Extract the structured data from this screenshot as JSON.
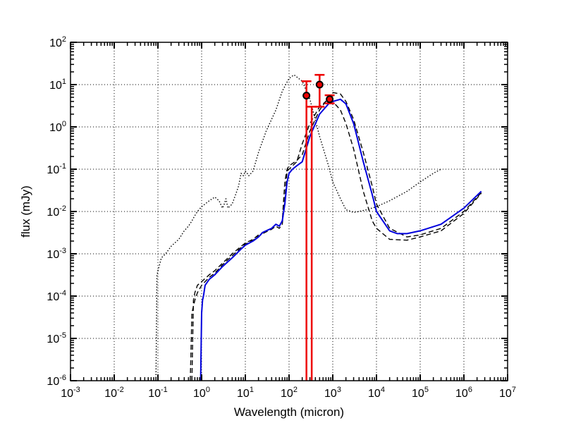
{
  "chart_data": {
    "type": "line",
    "xlabel": "Wavelength (micron)",
    "ylabel": "flux (mJy)",
    "xscale": "log",
    "yscale": "log",
    "xlim": [
      0.001,
      10000000
    ],
    "ylim": [
      1e-06,
      100
    ],
    "grid": true,
    "x_ticks": [
      {
        "base": "10",
        "exp": "-3"
      },
      {
        "base": "10",
        "exp": "-2"
      },
      {
        "base": "10",
        "exp": "-1"
      },
      {
        "base": "10",
        "exp": "0"
      },
      {
        "base": "10",
        "exp": "1"
      },
      {
        "base": "10",
        "exp": "2"
      },
      {
        "base": "10",
        "exp": "3"
      },
      {
        "base": "10",
        "exp": "4"
      },
      {
        "base": "10",
        "exp": "5"
      },
      {
        "base": "10",
        "exp": "6"
      },
      {
        "base": "10",
        "exp": "7"
      }
    ],
    "y_ticks": [
      {
        "base": "10",
        "exp": "-6"
      },
      {
        "base": "10",
        "exp": "-5"
      },
      {
        "base": "10",
        "exp": "-4"
      },
      {
        "base": "10",
        "exp": "-3"
      },
      {
        "base": "10",
        "exp": "-2"
      },
      {
        "base": "10",
        "exp": "-1"
      },
      {
        "base": "10",
        "exp": "0"
      },
      {
        "base": "10",
        "exp": "1"
      },
      {
        "base": "10",
        "exp": "2"
      }
    ],
    "series": [
      {
        "style": "dotted",
        "color": "#000000",
        "x": [
          0.09,
          0.095,
          0.1,
          0.12,
          0.15,
          0.2,
          0.3,
          0.4,
          0.5,
          0.55,
          0.6,
          0.7,
          0.8,
          1.0,
          1.5,
          2.0,
          2.5,
          3.0,
          3.3,
          3.6,
          4.0,
          5.0,
          6.0,
          7.0,
          8.0,
          9.0,
          10.0,
          11.0,
          12.0,
          15.0,
          20.0,
          30.0,
          50.0,
          70.0,
          100.0,
          130.0,
          200.0,
          300.0,
          500.0,
          800.0,
          1000.0,
          1500.0,
          2000.0,
          3000.0,
          4000.0,
          6000.0,
          10000.0,
          20000.0,
          50000.0,
          100000.0,
          200000.0,
          300000.0
        ],
        "y": [
          1e-06,
          0.0003,
          0.0004,
          0.0008,
          0.001,
          0.0015,
          0.0022,
          0.0035,
          0.0045,
          0.0052,
          0.006,
          0.008,
          0.01,
          0.013,
          0.018,
          0.022,
          0.018,
          0.012,
          0.015,
          0.02,
          0.012,
          0.015,
          0.025,
          0.04,
          0.08,
          0.07,
          0.09,
          0.08,
          0.07,
          0.09,
          0.25,
          0.8,
          2.5,
          7.0,
          14.0,
          17.0,
          12.0,
          4.5,
          0.6,
          0.12,
          0.05,
          0.02,
          0.011,
          0.0095,
          0.01,
          0.011,
          0.013,
          0.018,
          0.03,
          0.05,
          0.08,
          0.1
        ]
      },
      {
        "style": "dashed",
        "color": "#000000",
        "x": [
          0.6,
          0.65,
          0.7,
          0.8,
          1.0,
          1.5,
          2.0,
          3.0,
          5.0,
          8.0,
          10.0,
          15.0,
          20.0,
          25.0,
          30.0,
          40.0,
          50.0,
          60.0,
          70.0,
          80.0,
          90.0,
          100.0,
          150.0,
          200.0,
          300.0,
          500.0,
          800.0,
          1000.0,
          1500.0,
          2000.0,
          3000.0,
          5000.0,
          8000.0,
          10000.0,
          20000.0,
          50000.0,
          100000.0,
          300000.0,
          1000000.0,
          2500000.0
        ],
        "y": [
          1e-06,
          8e-05,
          0.00012,
          0.00018,
          0.00022,
          0.00032,
          0.0004,
          0.0006,
          0.001,
          0.0015,
          0.0018,
          0.0022,
          0.0028,
          0.0032,
          0.0035,
          0.004,
          0.005,
          0.0045,
          0.006,
          0.05,
          0.1,
          0.12,
          0.16,
          0.22,
          0.8,
          2.5,
          5.0,
          6.5,
          6.0,
          4.0,
          1.5,
          0.25,
          0.04,
          0.015,
          0.004,
          0.0025,
          0.0028,
          0.004,
          0.01,
          0.028
        ]
      },
      {
        "style": "dashed",
        "color": "#000000",
        "x": [
          0.55,
          0.6,
          0.7,
          0.8,
          1.0,
          1.5,
          2.0,
          3.0,
          5.0,
          8.0,
          10.0,
          15.0,
          20.0,
          25.0,
          30.0,
          40.0,
          50.0,
          60.0,
          70.0,
          80.0,
          90.0,
          100.0,
          150.0,
          200.0,
          300.0,
          500.0,
          800.0,
          1000.0,
          1500.0,
          2000.0,
          3000.0,
          5000.0,
          8000.0,
          10000.0,
          20000.0,
          50000.0,
          100000.0,
          300000.0,
          1000000.0,
          2500000.0
        ],
        "y": [
          1e-06,
          4e-05,
          8e-05,
          0.00012,
          0.00018,
          0.00028,
          0.00035,
          0.00055,
          0.0009,
          0.0014,
          0.0017,
          0.0021,
          0.0026,
          0.003,
          0.0033,
          0.0038,
          0.0045,
          0.004,
          0.005,
          0.02,
          0.09,
          0.1,
          0.15,
          0.4,
          1.2,
          3.0,
          4.5,
          4.0,
          2.5,
          1.2,
          0.3,
          0.03,
          0.006,
          0.004,
          0.0022,
          0.0021,
          0.0025,
          0.0035,
          0.009,
          0.027
        ]
      },
      {
        "style": "solid",
        "color": "#0000dd",
        "x": [
          0.95,
          1.0,
          1.05,
          1.1,
          1.2,
          1.5,
          2.0,
          3.0,
          5.0,
          8.0,
          10.0,
          15.0,
          20.0,
          25.0,
          30.0,
          40.0,
          50.0,
          60.0,
          70.0,
          80.0,
          90.0,
          100.0,
          120.0,
          150.0,
          200.0,
          300.0,
          500.0,
          800.0,
          1000.0,
          1500.0,
          2000.0,
          3000.0,
          5000.0,
          8000.0,
          10000.0,
          20000.0,
          30000.0,
          50000.0,
          100000.0,
          300000.0,
          1000000.0,
          2500000.0
        ],
        "y": [
          1e-06,
          4e-05,
          8e-05,
          0.0001,
          0.00018,
          0.00025,
          0.00032,
          0.0005,
          0.0008,
          0.0013,
          0.0016,
          0.002,
          0.0025,
          0.0032,
          0.0035,
          0.004,
          0.005,
          0.0045,
          0.006,
          0.015,
          0.05,
          0.08,
          0.1,
          0.12,
          0.15,
          0.6,
          2.0,
          3.5,
          4.0,
          4.5,
          3.5,
          1.2,
          0.15,
          0.025,
          0.01,
          0.0035,
          0.003,
          0.003,
          0.0035,
          0.005,
          0.012,
          0.03
        ]
      }
    ],
    "points": [
      {
        "x": 250,
        "y": 5.5,
        "ylow": 1e-06,
        "yhigh": 12
      },
      {
        "x": 500,
        "y": 10,
        "ylow": 3,
        "yhigh": 17
      },
      {
        "x": 850,
        "y": 4.5,
        "ylow": 3.6,
        "yhigh": 5.6
      }
    ],
    "extra_errorbars": [
      {
        "x": 330,
        "ylow": 1e-06,
        "yhigh": 3
      }
    ],
    "point_color": "#ee0000"
  }
}
